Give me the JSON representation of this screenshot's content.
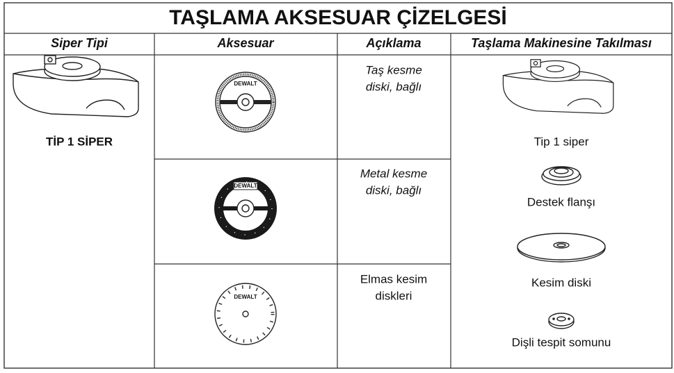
{
  "header": {
    "title": "TAŞLAMA AKSESUAR ÇİZELGESİ"
  },
  "table": {
    "columns": [
      "Siper Tipi",
      "Aksesuar",
      "Açıklama",
      "Taşlama Makinesine Takılması"
    ],
    "guard_type": "TİP 1 SİPER",
    "brand": "DEWALT",
    "rows": [
      {
        "description": [
          "Taş kesme",
          "diski, bağlı"
        ]
      },
      {
        "description": [
          "Metal kesme",
          "diski, bağlı"
        ]
      },
      {
        "description": [
          "Elmas kesim",
          "diskleri"
        ]
      }
    ],
    "attachment": [
      "Tip 1 siper",
      "Destek flanşı",
      "Kesim diski",
      "Dişli tespit somunu"
    ]
  }
}
